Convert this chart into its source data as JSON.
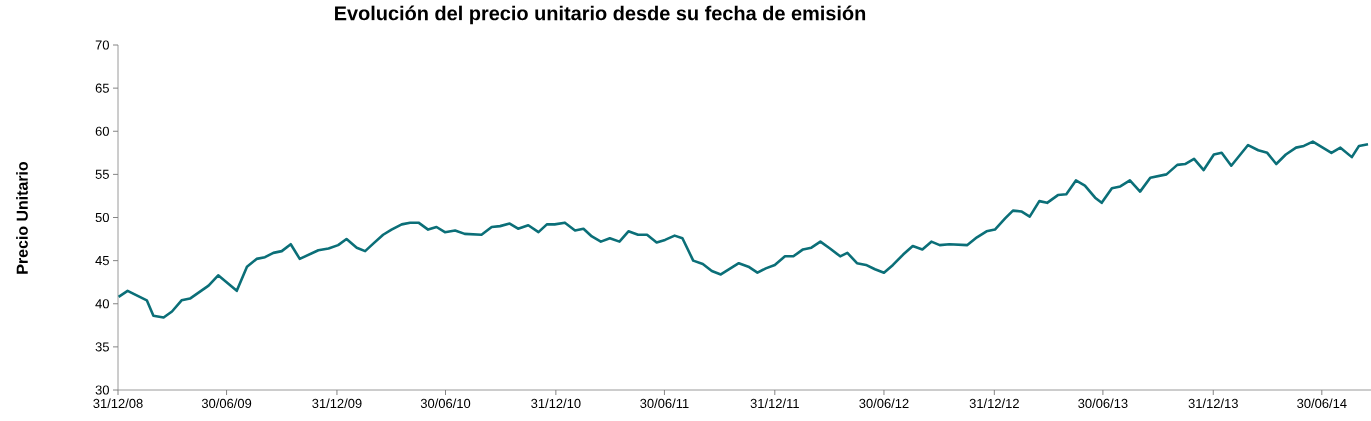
{
  "chart_data": {
    "type": "line",
    "title": "Evolución del precio unitario desde su fecha de emisión",
    "ylabel": "Precio Unitario",
    "xlim": [
      "2008-12-31",
      "2014-09-20"
    ],
    "xticks": [
      {
        "value": "2008-12-31",
        "label": "31/12/08"
      },
      {
        "value": "2009-06-30",
        "label": "30/06/09"
      },
      {
        "value": "2009-12-31",
        "label": "31/12/09"
      },
      {
        "value": "2010-06-30",
        "label": "30/06/10"
      },
      {
        "value": "2010-12-31",
        "label": "31/12/10"
      },
      {
        "value": "2011-06-30",
        "label": "30/06/11"
      },
      {
        "value": "2011-12-31",
        "label": "31/12/11"
      },
      {
        "value": "2012-06-30",
        "label": "30/06/12"
      },
      {
        "value": "2012-12-31",
        "label": "31/12/12"
      },
      {
        "value": "2013-06-30",
        "label": "30/06/13"
      },
      {
        "value": "2013-12-31",
        "label": "31/12/13"
      },
      {
        "value": "2014-06-30",
        "label": "30/06/14"
      }
    ],
    "ylim": [
      30,
      70
    ],
    "yticks": [
      30,
      35,
      40,
      45,
      50,
      55,
      60,
      65,
      70
    ],
    "x": [
      "2009-01-01",
      "2009-01-16",
      "2009-02-17",
      "2009-02-28",
      "2009-03-17",
      "2009-03-31",
      "2009-04-16",
      "2009-04-30",
      "2009-05-31",
      "2009-06-16",
      "2009-07-17",
      "2009-08-03",
      "2009-08-19",
      "2009-09-02",
      "2009-09-16",
      "2009-09-30",
      "2009-10-15",
      "2009-10-30",
      "2009-11-30",
      "2009-12-17",
      "2010-01-02",
      "2010-01-16",
      "2010-02-02",
      "2010-02-16",
      "2010-03-02",
      "2010-03-18",
      "2010-04-01",
      "2010-04-18",
      "2010-05-02",
      "2010-05-16",
      "2010-06-01",
      "2010-06-15",
      "2010-06-29",
      "2010-07-16",
      "2010-08-01",
      "2010-08-29",
      "2010-09-15",
      "2010-09-29",
      "2010-10-15",
      "2010-10-29",
      "2010-11-15",
      "2010-12-02",
      "2010-12-16",
      "2010-12-29",
      "2011-01-15",
      "2011-02-01",
      "2011-02-15",
      "2011-03-01",
      "2011-03-16",
      "2011-03-31",
      "2011-04-16",
      "2011-05-01",
      "2011-05-17",
      "2011-06-01",
      "2011-06-17",
      "2011-07-01",
      "2011-07-17",
      "2011-07-30",
      "2011-08-17",
      "2011-09-02",
      "2011-09-17",
      "2011-10-02",
      "2011-11-01",
      "2011-11-17",
      "2011-12-02",
      "2011-12-16",
      "2011-12-31",
      "2012-01-17",
      "2012-01-31",
      "2012-02-16",
      "2012-03-01",
      "2012-03-16",
      "2012-04-01",
      "2012-04-18",
      "2012-04-30",
      "2012-05-16",
      "2012-05-31",
      "2012-06-15",
      "2012-06-30",
      "2012-07-15",
      "2012-08-01",
      "2012-08-17",
      "2012-09-02",
      "2012-09-17",
      "2012-10-01",
      "2012-10-17",
      "2012-11-16",
      "2012-12-02",
      "2012-12-18",
      "2013-01-01",
      "2013-01-18",
      "2013-01-31",
      "2013-02-14",
      "2013-02-28",
      "2013-03-16",
      "2013-03-29",
      "2013-04-16",
      "2013-04-30",
      "2013-05-16",
      "2013-05-31",
      "2013-06-17",
      "2013-06-28",
      "2013-07-15",
      "2013-07-29",
      "2013-08-14",
      "2013-08-31",
      "2013-09-17",
      "2013-10-14",
      "2013-11-01",
      "2013-11-14",
      "2013-11-29",
      "2013-12-15",
      "2014-01-01",
      "2014-01-14",
      "2014-01-30",
      "2014-02-27",
      "2014-03-16",
      "2014-03-31",
      "2014-04-15",
      "2014-05-01",
      "2014-05-18",
      "2014-05-31",
      "2014-06-15",
      "2014-07-16",
      "2014-07-31",
      "2014-08-19",
      "2014-08-31",
      "2014-09-15"
    ],
    "series": [
      {
        "color": "#0b6f78",
        "values": [
          40.8,
          41.5,
          40.4,
          38.6,
          38.4,
          39.1,
          40.4,
          40.6,
          42.1,
          43.3,
          41.5,
          44.3,
          45.2,
          45.4,
          45.9,
          46.1,
          46.9,
          45.2,
          46.2,
          46.4,
          46.8,
          47.5,
          46.5,
          46.1,
          47.0,
          48.0,
          48.6,
          49.2,
          49.4,
          49.4,
          48.6,
          48.9,
          48.3,
          48.5,
          48.1,
          48.0,
          48.9,
          49.0,
          49.3,
          48.7,
          49.1,
          48.3,
          49.2,
          49.2,
          49.4,
          48.5,
          48.7,
          47.8,
          47.2,
          47.6,
          47.2,
          48.4,
          48.0,
          48.0,
          47.1,
          47.4,
          47.9,
          47.6,
          45.0,
          44.6,
          43.8,
          43.4,
          44.7,
          44.3,
          43.6,
          44.1,
          44.5,
          45.5,
          45.5,
          46.3,
          46.5,
          47.2,
          46.4,
          45.5,
          45.9,
          44.7,
          44.5,
          44.0,
          43.6,
          44.5,
          45.7,
          46.7,
          46.3,
          47.2,
          46.8,
          46.9,
          46.8,
          47.7,
          48.4,
          48.6,
          49.9,
          50.8,
          50.7,
          50.1,
          51.9,
          51.7,
          52.6,
          52.7,
          54.3,
          53.7,
          52.3,
          51.7,
          53.4,
          53.6,
          54.3,
          53.0,
          54.6,
          55.0,
          56.1,
          56.2,
          56.8,
          55.5,
          57.3,
          57.5,
          56.0,
          58.4,
          57.8,
          57.5,
          56.2,
          57.3,
          58.1,
          58.3,
          58.8,
          57.5,
          58.1,
          57.0,
          58.3,
          58.5
        ]
      }
    ]
  }
}
